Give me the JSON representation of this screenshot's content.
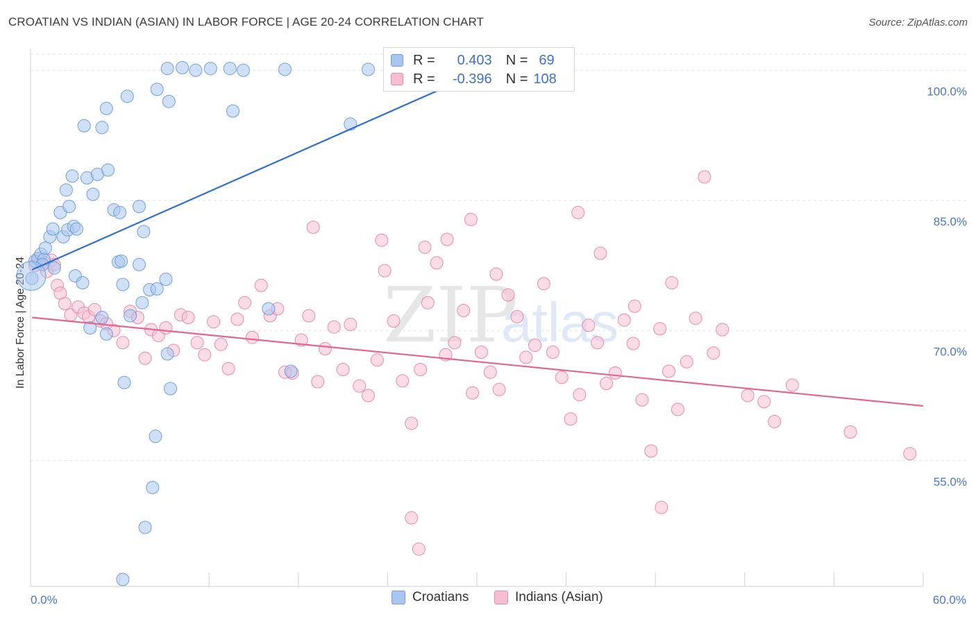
{
  "header": {
    "title": "CROATIAN VS INDIAN (ASIAN) IN LABOR FORCE | AGE 20-24 CORRELATION CHART",
    "source": "Source: ZipAtlas.com"
  },
  "watermark": {
    "zip": "ZIP",
    "atlas": "atlas"
  },
  "legend": {
    "rows": [
      {
        "r_label": "R =",
        "r_value": "0.403",
        "n_label": "N =",
        "n_value": "69"
      },
      {
        "r_label": "R =",
        "r_value": "-0.396",
        "n_label": "N =",
        "n_value": "108"
      }
    ]
  },
  "bottom_legend": {
    "croatians": "Croatians",
    "indians": "Indians (Asian)"
  },
  "colors": {
    "blue_fill": "#a9c6ee",
    "blue_stroke": "#6f9fdc",
    "blue_line": "#2f6fcc",
    "pink_fill": "#f6bfd1",
    "pink_stroke": "#e88aab",
    "pink_line": "#e2678f",
    "tick_text": "#4a76c9",
    "grid": "#e3e3e3"
  },
  "chart_data": {
    "type": "scatter",
    "title": "CROATIAN VS INDIAN (ASIAN) IN LABOR FORCE | AGE 20-24 CORRELATION CHART",
    "xlabel": "",
    "ylabel": "In Labor Force | Age 20-24",
    "xlim": [
      0,
      60
    ],
    "ylim": [
      40.5,
      102.5
    ],
    "x_tick_labels": [
      "0.0%",
      "60.0%"
    ],
    "y_ticks": [
      55,
      70,
      85,
      100
    ],
    "y_tick_labels": [
      "55.0%",
      "70.0%",
      "85.0%",
      "100.0%"
    ],
    "grid": true,
    "legend_position": "top-center",
    "series": [
      {
        "name": "Croatians",
        "r": 0.403,
        "n": 69,
        "trend": {
          "x": [
            0.1,
            33.1
          ],
          "y": [
            77.0,
            102.0
          ]
        },
        "points": [
          [
            0.1,
            76.0
          ],
          [
            0.3,
            78.0
          ],
          [
            0.5,
            78.3
          ],
          [
            0.7,
            78.8
          ],
          [
            0.9,
            78.2
          ],
          [
            0.8,
            77.6
          ],
          [
            1.0,
            79.5
          ],
          [
            1.3,
            80.8
          ],
          [
            1.5,
            81.7
          ],
          [
            1.6,
            77.2
          ],
          [
            2.0,
            83.6
          ],
          [
            2.2,
            80.8
          ],
          [
            2.4,
            86.2
          ],
          [
            2.6,
            84.3
          ],
          [
            2.8,
            87.8
          ],
          [
            2.5,
            81.6
          ],
          [
            2.9,
            82.0
          ],
          [
            3.1,
            81.7
          ],
          [
            3.0,
            76.3
          ],
          [
            3.5,
            75.5
          ],
          [
            3.8,
            87.6
          ],
          [
            4.2,
            85.7
          ],
          [
            4.5,
            88.0
          ],
          [
            4.8,
            93.4
          ],
          [
            5.2,
            88.5
          ],
          [
            5.6,
            83.9
          ],
          [
            6.0,
            83.6
          ],
          [
            3.6,
            93.6
          ],
          [
            5.1,
            95.6
          ],
          [
            6.5,
            97.0
          ],
          [
            5.9,
            77.9
          ],
          [
            6.2,
            75.3
          ],
          [
            7.3,
            77.6
          ],
          [
            7.6,
            81.4
          ],
          [
            8.0,
            74.7
          ],
          [
            7.3,
            84.3
          ],
          [
            8.5,
            97.8
          ],
          [
            9.3,
            96.4
          ],
          [
            9.2,
            100.2
          ],
          [
            10.2,
            100.3
          ],
          [
            11.1,
            100.0
          ],
          [
            12.1,
            100.2
          ],
          [
            13.6,
            95.3
          ],
          [
            13.4,
            100.2
          ],
          [
            14.3,
            100.0
          ],
          [
            17.1,
            100.1
          ],
          [
            21.5,
            93.8
          ],
          [
            22.7,
            100.1
          ],
          [
            25.3,
            100.1
          ],
          [
            26.0,
            100.2
          ],
          [
            27.6,
            100.2
          ],
          [
            28.3,
            100.0
          ],
          [
            4.0,
            70.3
          ],
          [
            4.8,
            71.5
          ],
          [
            5.1,
            69.6
          ],
          [
            7.5,
            73.2
          ],
          [
            6.7,
            71.7
          ],
          [
            6.3,
            64.0
          ],
          [
            6.1,
            78.0
          ],
          [
            9.1,
            75.9
          ],
          [
            8.5,
            74.8
          ],
          [
            9.2,
            67.3
          ],
          [
            9.4,
            63.3
          ],
          [
            8.4,
            57.8
          ],
          [
            8.2,
            51.9
          ],
          [
            7.7,
            47.3
          ],
          [
            6.2,
            41.3
          ],
          [
            16.0,
            72.5
          ],
          [
            17.5,
            65.3
          ]
        ]
      },
      {
        "name": "Indians (Asian)",
        "r": -0.396,
        "n": 108,
        "trend": {
          "x": [
            0.1,
            60.0
          ],
          "y": [
            71.5,
            61.3
          ]
        },
        "points": [
          [
            0.3,
            77.5
          ],
          [
            0.5,
            78.3
          ],
          [
            0.9,
            77.9
          ],
          [
            1.1,
            76.8
          ],
          [
            1.4,
            78.1
          ],
          [
            1.6,
            77.6
          ],
          [
            1.8,
            75.2
          ],
          [
            2.0,
            74.3
          ],
          [
            2.3,
            73.1
          ],
          [
            2.7,
            71.8
          ],
          [
            3.2,
            72.7
          ],
          [
            3.6,
            72.0
          ],
          [
            3.9,
            71.6
          ],
          [
            4.3,
            72.4
          ],
          [
            4.7,
            71.1
          ],
          [
            5.1,
            70.8
          ],
          [
            5.6,
            70.0
          ],
          [
            6.2,
            68.6
          ],
          [
            6.7,
            72.2
          ],
          [
            7.2,
            71.5
          ],
          [
            7.7,
            66.8
          ],
          [
            8.1,
            70.1
          ],
          [
            8.6,
            69.4
          ],
          [
            9.1,
            70.3
          ],
          [
            9.6,
            67.7
          ],
          [
            10.1,
            71.8
          ],
          [
            10.6,
            71.5
          ],
          [
            11.2,
            68.6
          ],
          [
            11.7,
            67.2
          ],
          [
            12.3,
            71.0
          ],
          [
            12.8,
            68.4
          ],
          [
            13.3,
            65.6
          ],
          [
            13.9,
            71.3
          ],
          [
            14.4,
            73.2
          ],
          [
            14.9,
            69.2
          ],
          [
            15.5,
            75.2
          ],
          [
            16.1,
            71.7
          ],
          [
            16.6,
            72.5
          ],
          [
            17.1,
            65.2
          ],
          [
            17.6,
            65.1
          ],
          [
            18.2,
            68.9
          ],
          [
            18.7,
            71.7
          ],
          [
            19.3,
            64.1
          ],
          [
            19.8,
            67.9
          ],
          [
            20.4,
            70.4
          ],
          [
            21.0,
            65.5
          ],
          [
            21.5,
            70.7
          ],
          [
            22.1,
            63.6
          ],
          [
            22.7,
            62.5
          ],
          [
            23.3,
            66.6
          ],
          [
            23.8,
            76.9
          ],
          [
            24.4,
            71.1
          ],
          [
            25.0,
            64.2
          ],
          [
            25.6,
            59.3
          ],
          [
            26.2,
            65.5
          ],
          [
            26.7,
            73.2
          ],
          [
            27.3,
            77.8
          ],
          [
            27.9,
            67.2
          ],
          [
            28.5,
            68.6
          ],
          [
            29.1,
            72.3
          ],
          [
            29.7,
            62.8
          ],
          [
            30.3,
            67.5
          ],
          [
            30.9,
            65.2
          ],
          [
            31.5,
            63.2
          ],
          [
            32.1,
            74.1
          ],
          [
            32.7,
            71.6
          ],
          [
            33.3,
            66.9
          ],
          [
            33.9,
            68.3
          ],
          [
            34.5,
            75.4
          ],
          [
            35.1,
            67.5
          ],
          [
            35.7,
            64.6
          ],
          [
            36.3,
            59.8
          ],
          [
            36.9,
            62.6
          ],
          [
            37.5,
            70.6
          ],
          [
            38.1,
            68.6
          ],
          [
            38.7,
            63.9
          ],
          [
            39.3,
            65.1
          ],
          [
            39.9,
            71.2
          ],
          [
            40.5,
            68.5
          ],
          [
            41.1,
            62.0
          ],
          [
            41.7,
            56.1
          ],
          [
            42.3,
            70.2
          ],
          [
            42.9,
            65.3
          ],
          [
            43.5,
            60.9
          ],
          [
            44.1,
            66.4
          ],
          [
            44.7,
            71.4
          ],
          [
            45.3,
            87.7
          ],
          [
            45.9,
            67.4
          ],
          [
            46.5,
            70.1
          ],
          [
            48.2,
            62.5
          ],
          [
            49.3,
            61.8
          ],
          [
            50.0,
            59.5
          ],
          [
            51.2,
            63.7
          ],
          [
            55.1,
            58.3
          ],
          [
            59.1,
            55.8
          ],
          [
            25.6,
            48.4
          ],
          [
            31.3,
            76.5
          ],
          [
            26.5,
            79.6
          ],
          [
            28.0,
            80.5
          ],
          [
            29.6,
            82.8
          ],
          [
            23.6,
            80.4
          ],
          [
            19.0,
            81.9
          ],
          [
            43.1,
            75.5
          ],
          [
            42.4,
            49.6
          ],
          [
            38.3,
            78.9
          ],
          [
            40.6,
            72.8
          ],
          [
            36.8,
            83.6
          ],
          [
            26.1,
            44.8
          ]
        ]
      }
    ]
  }
}
